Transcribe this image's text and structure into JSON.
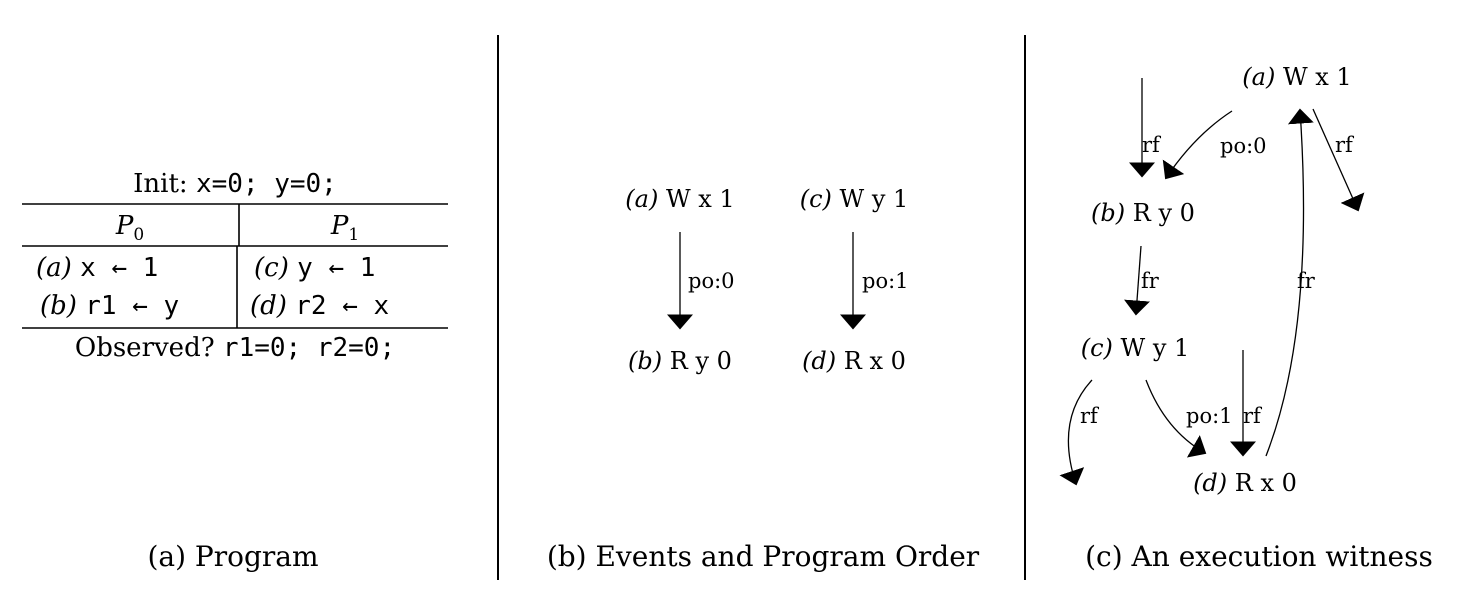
{
  "program": {
    "init_label": "Init:",
    "init_code": "x=0; y=0;",
    "header_p0": "P",
    "header_p0_sub": "0",
    "header_p1": "P",
    "header_p1_sub": "1",
    "rows": [
      {
        "p0_tag": "(a)",
        "p0_code": "x ← 1",
        "p1_tag": "(c)",
        "p1_code": "y ← 1"
      },
      {
        "p0_tag": "(b)",
        "p0_code": "r1 ← y",
        "p1_tag": "(d)",
        "p1_code": "r2 ← x"
      }
    ],
    "observed_label": "Observed?",
    "observed_code": "r1=0; r2=0;",
    "caption": "(a) Program"
  },
  "events_panel": {
    "events": {
      "a": {
        "tag": "(a)",
        "label": "W x 1"
      },
      "b": {
        "tag": "(b)",
        "label": "R y 0"
      },
      "c": {
        "tag": "(c)",
        "label": "W y 1"
      },
      "d": {
        "tag": "(d)",
        "label": "R x 0"
      }
    },
    "edges": {
      "po0": "po:0",
      "po1": "po:1"
    },
    "caption": "(b) Events and Program Order"
  },
  "witness_panel": {
    "events": {
      "a": {
        "tag": "(a)",
        "label": "W x 1"
      },
      "b": {
        "tag": "(b)",
        "label": "R y 0"
      },
      "c": {
        "tag": "(c)",
        "label": "W y 1"
      },
      "d": {
        "tag": "(d)",
        "label": "R x 0"
      }
    },
    "edges": {
      "rf_into_b": "rf",
      "po0": "po:0",
      "rf_out_a": "rf",
      "fr_b_c": "fr",
      "fr_d_a": "fr",
      "rf_out_c": "rf",
      "po1": "po:1",
      "rf_into_d": "rf"
    },
    "caption": "(c) An execution witness"
  }
}
